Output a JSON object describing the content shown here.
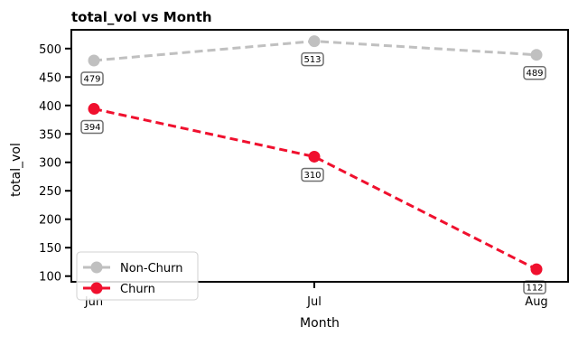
{
  "chart_data": {
    "type": "line",
    "title": "total_vol vs Month",
    "xlabel": "Month",
    "ylabel": "total_vol",
    "categories": [
      "Jun",
      "Jul",
      "Aug"
    ],
    "ylim": [
      90,
      533
    ],
    "yticks": [
      100,
      150,
      200,
      250,
      300,
      350,
      400,
      450,
      500
    ],
    "grid": false,
    "legend_position": "lower-left",
    "series": [
      {
        "name": "Non-Churn",
        "values": [
          479,
          513,
          489
        ],
        "color": "#c0c0c0",
        "style": "dashed",
        "labels": [
          "479",
          "513",
          "489"
        ]
      },
      {
        "name": "Churn",
        "values": [
          394,
          310,
          112
        ],
        "color": "#f0102e",
        "style": "dashed",
        "labels": [
          "394",
          "310",
          "112"
        ]
      }
    ]
  }
}
